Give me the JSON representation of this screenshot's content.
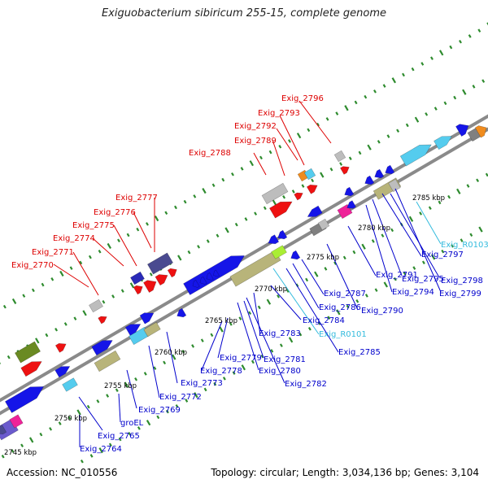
{
  "header": {
    "title": "Exiguobacterium sibiricum 255-15, complete genome"
  },
  "footer": {
    "accession": "Accession: NC_010556",
    "summary": "Topology: circular; Length: 3,034,136 bp; Genes: 3,104"
  },
  "colors": {
    "red_label": "#dd0000",
    "blue_label": "#0000cc",
    "cyan_label": "#33bbdd",
    "backbone": "#8a8a8a",
    "tick": "#2e8b2e"
  },
  "scale_labels": [
    "2745 kbp",
    "2750 kbp",
    "2755 kbp",
    "2760 kbp",
    "2765 kbp",
    "2770 kbp",
    "2775 kbp",
    "2780 kbp",
    "2785 kbp"
  ],
  "red_labels": [
    "Exig_2770",
    "Exig_2771",
    "Exig_2774",
    "Exig_2775",
    "Exig_2776",
    "Exig_2777",
    "Exig_2788",
    "Exig_2789",
    "Exig_2792",
    "Exig_2793",
    "Exig_2796"
  ],
  "blue_labels": [
    "Exig_2764",
    "Exig_2765",
    "groEL",
    "Exig_2769",
    "Exig_2772",
    "Exig_2773",
    "Exig_2778",
    "Exig_2779",
    "Exig_2780",
    "Exig_2781",
    "Exig_2782",
    "Exig_2783",
    "Exig_2784",
    "Exig_2785",
    "Exig_2786",
    "Exig_2787",
    "Exig_2790",
    "Exig_2791",
    "Exig_2794",
    "Exig_2795",
    "Exig_2797",
    "Exig_2798",
    "Exig_2799"
  ],
  "cyan_labels": [
    "Exig_R0101",
    "Exig_R0103"
  ]
}
